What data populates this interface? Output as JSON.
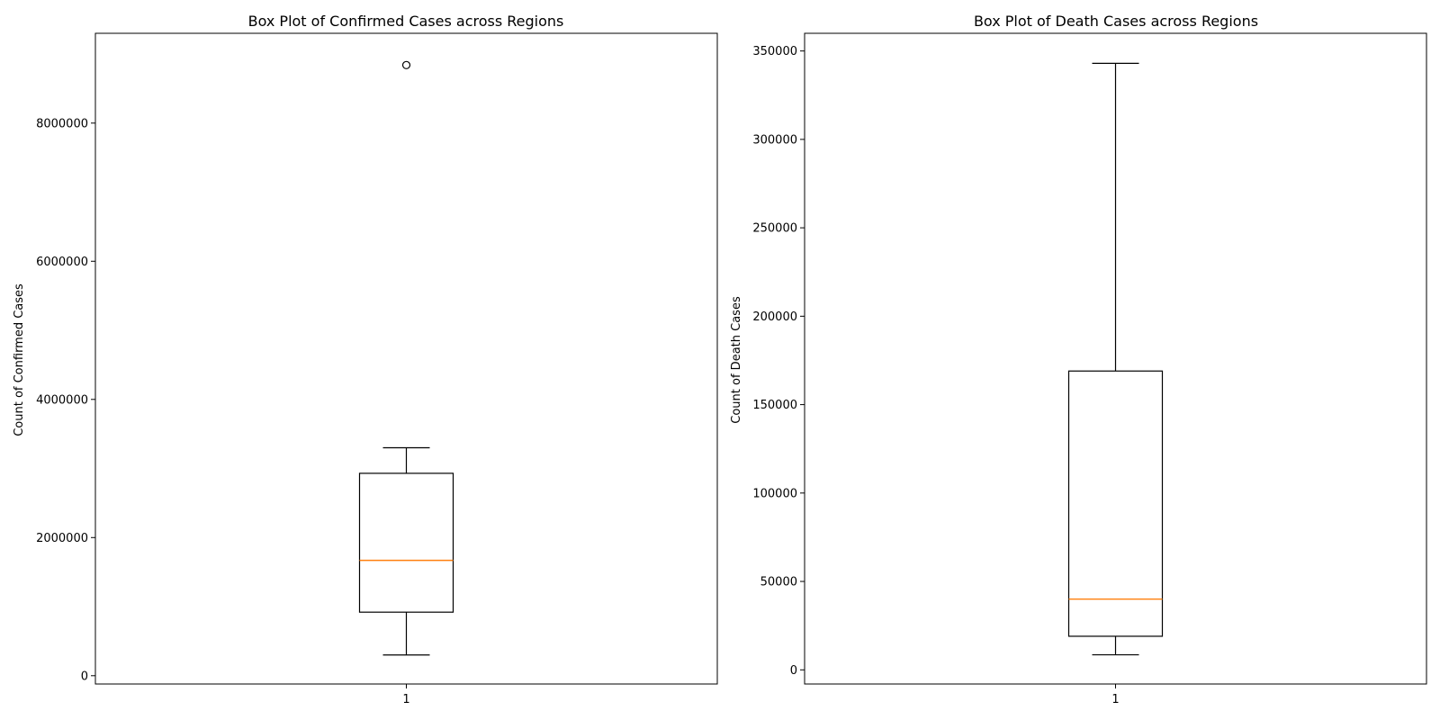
{
  "chart_data": [
    {
      "type": "box",
      "title": "Box Plot of Confirmed Cases across Regions",
      "xlabel": "",
      "ylabel": "Count of Confirmed Cases",
      "categories": [
        "1"
      ],
      "ylim": [
        -120000,
        9300000
      ],
      "yticks": [
        0,
        2000000,
        4000000,
        6000000,
        8000000
      ],
      "ytick_labels": [
        "0",
        "2000000",
        "4000000",
        "6000000",
        "8000000"
      ],
      "grid": false,
      "box": {
        "whisker_low": 300000,
        "q1": 920000,
        "median": 1670000,
        "q3": 2930000,
        "whisker_high": 3300000
      },
      "outliers": [
        8840000
      ],
      "colors": {
        "median": "#ff7f0e",
        "box": "#000000"
      }
    },
    {
      "type": "box",
      "title": "Box Plot of Death Cases across Regions",
      "xlabel": "",
      "ylabel": "Count of Death Cases",
      "categories": [
        "1"
      ],
      "ylim": [
        -8000,
        360000
      ],
      "yticks": [
        0,
        50000,
        100000,
        150000,
        200000,
        250000,
        300000,
        350000
      ],
      "ytick_labels": [
        "0",
        "50000",
        "100000",
        "150000",
        "200000",
        "250000",
        "300000",
        "350000"
      ],
      "grid": false,
      "box": {
        "whisker_low": 8500,
        "q1": 19000,
        "median": 40000,
        "q3": 169000,
        "whisker_high": 343000
      },
      "outliers": [],
      "colors": {
        "median": "#ff7f0e",
        "box": "#000000"
      }
    }
  ]
}
